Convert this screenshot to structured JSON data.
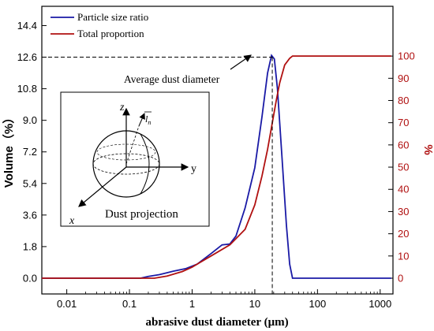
{
  "chart_data": {
    "type": "line",
    "xlabel": "abrasive dust diameter (μm)",
    "ylabel_left": "Volume（%）",
    "ylabel_right": "%",
    "xscale": "log",
    "xlim": [
      0.004,
      1600
    ],
    "ylim_left": [
      -0.9,
      15.5
    ],
    "ylim_right": [
      -7.1,
      122.4
    ],
    "x_ticks": [
      {
        "v": 0.01,
        "label": "0.01"
      },
      {
        "v": 0.1,
        "label": "0.1"
      },
      {
        "v": 1,
        "label": "1"
      },
      {
        "v": 10,
        "label": "10"
      },
      {
        "v": 100,
        "label": "100"
      },
      {
        "v": 1000,
        "label": "1000"
      }
    ],
    "y_ticks_left": [
      {
        "v": 0,
        "label": "0.0"
      },
      {
        "v": 1.8,
        "label": "1.8"
      },
      {
        "v": 3.6,
        "label": "3.6"
      },
      {
        "v": 5.4,
        "label": "5.4"
      },
      {
        "v": 7.2,
        "label": "7.2"
      },
      {
        "v": 9.0,
        "label": "9.0"
      },
      {
        "v": 10.8,
        "label": "10.8"
      },
      {
        "v": 12.6,
        "label": "12.6"
      },
      {
        "v": 14.4,
        "label": "14.4"
      }
    ],
    "y_ticks_right": [
      {
        "v": 0,
        "label": "0"
      },
      {
        "v": 10,
        "label": "10"
      },
      {
        "v": 20,
        "label": "20"
      },
      {
        "v": 30,
        "label": "30"
      },
      {
        "v": 40,
        "label": "40"
      },
      {
        "v": 50,
        "label": "50"
      },
      {
        "v": 60,
        "label": "60"
      },
      {
        "v": 70,
        "label": "70"
      },
      {
        "v": 80,
        "label": "80"
      },
      {
        "v": 90,
        "label": "90"
      },
      {
        "v": 100,
        "label": "100"
      }
    ],
    "legend_position": "top-left",
    "series": [
      {
        "name": "Particle size ratio",
        "axis": "left",
        "color": "#1a1aa6",
        "points": [
          [
            0.004,
            0
          ],
          [
            0.15,
            0
          ],
          [
            0.2,
            0.1
          ],
          [
            0.3,
            0.2
          ],
          [
            0.5,
            0.4
          ],
          [
            0.8,
            0.55
          ],
          [
            1.2,
            0.8
          ],
          [
            2,
            1.4
          ],
          [
            3,
            1.9
          ],
          [
            4,
            1.95
          ],
          [
            5,
            2.4
          ],
          [
            7,
            4.0
          ],
          [
            10,
            6.3
          ],
          [
            13,
            9.2
          ],
          [
            16,
            11.7
          ],
          [
            18.5,
            12.7
          ],
          [
            20.5,
            12.5
          ],
          [
            23,
            10.8
          ],
          [
            27,
            7.0
          ],
          [
            32,
            3.0
          ],
          [
            36,
            0.8
          ],
          [
            40,
            0
          ],
          [
            1500,
            0
          ]
        ]
      },
      {
        "name": "Total proportion",
        "axis": "right",
        "color": "#b01010",
        "points": [
          [
            0.004,
            0
          ],
          [
            0.25,
            0
          ],
          [
            0.4,
            1
          ],
          [
            0.7,
            3
          ],
          [
            1,
            5
          ],
          [
            2,
            10
          ],
          [
            4,
            15
          ],
          [
            7,
            22
          ],
          [
            10,
            33
          ],
          [
            13,
            46
          ],
          [
            16,
            58
          ],
          [
            19,
            70
          ],
          [
            22,
            80
          ],
          [
            25,
            88
          ],
          [
            30,
            96
          ],
          [
            36,
            99
          ],
          [
            40,
            100
          ],
          [
            1500,
            100
          ]
        ]
      }
    ],
    "annotations": [
      {
        "text": "Average dust diameter",
        "x": 19,
        "y": 12.6
      }
    ],
    "inset": {
      "caption": "Dust projection",
      "axis_x": "x",
      "axis_y": "y",
      "axis_z": "z",
      "vector": "l",
      "vector_sub": "n"
    }
  },
  "colors": {
    "series1": "#1a1aa6",
    "series2": "#b01010",
    "right_axis": "#b01010"
  }
}
